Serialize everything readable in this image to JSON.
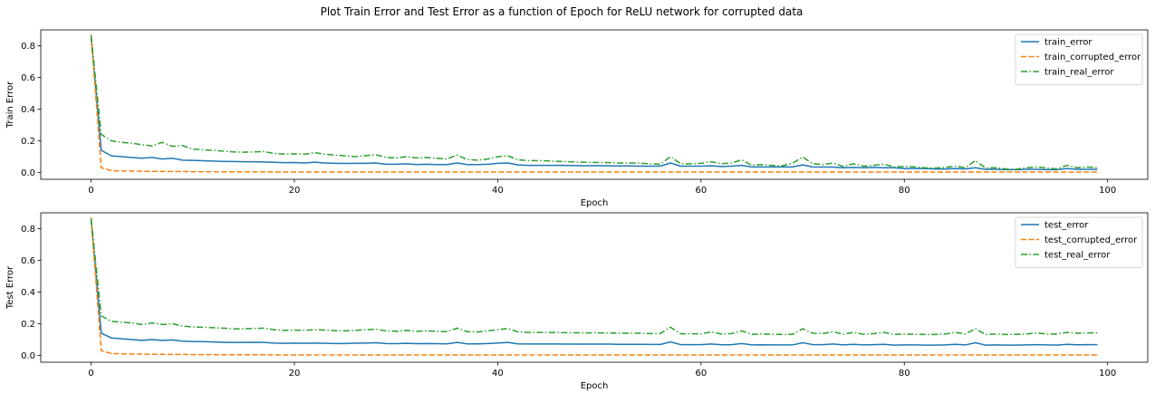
{
  "title": "Plot Train Error and Test Error as a function of Epoch for ReLU network for corrupted data",
  "colors": {
    "blue": "#1f77b4",
    "orange": "#ff7f0e",
    "green": "#2ca02c"
  },
  "chart_data": [
    {
      "type": "line",
      "xlabel": "Epoch",
      "ylabel": "Train Error",
      "xlim": [
        -4.95,
        103.95
      ],
      "ylim": [
        -0.043,
        0.9
      ],
      "xticks": [
        0,
        20,
        40,
        60,
        80,
        100
      ],
      "yticks": [
        0.0,
        0.2,
        0.4,
        0.6,
        0.8
      ],
      "legend_position": "top-right",
      "series": [
        {
          "name": "train_error",
          "color": "blue",
          "dash": "solid",
          "values": [
            0.855,
            0.14,
            0.105,
            0.1,
            0.095,
            0.09,
            0.095,
            0.085,
            0.09,
            0.078,
            0.076,
            0.074,
            0.072,
            0.07,
            0.069,
            0.068,
            0.068,
            0.066,
            0.064,
            0.062,
            0.063,
            0.06,
            0.065,
            0.06,
            0.058,
            0.057,
            0.058,
            0.058,
            0.06,
            0.052,
            0.052,
            0.055,
            0.05,
            0.052,
            0.05,
            0.05,
            0.06,
            0.05,
            0.05,
            0.052,
            0.058,
            0.06,
            0.048,
            0.045,
            0.045,
            0.045,
            0.045,
            0.044,
            0.043,
            0.043,
            0.043,
            0.042,
            0.041,
            0.041,
            0.04,
            0.04,
            0.04,
            0.06,
            0.04,
            0.04,
            0.04,
            0.042,
            0.038,
            0.04,
            0.045,
            0.035,
            0.035,
            0.035,
            0.035,
            0.035,
            0.048,
            0.035,
            0.034,
            0.034,
            0.03,
            0.032,
            0.03,
            0.032,
            0.03,
            0.03,
            0.025,
            0.025,
            0.025,
            0.022,
            0.022,
            0.025,
            0.022,
            0.03,
            0.02,
            0.02,
            0.018,
            0.018,
            0.02,
            0.02,
            0.018,
            0.018,
            0.025,
            0.02,
            0.02,
            0.02
          ]
        },
        {
          "name": "train_corrupted_error",
          "color": "orange",
          "dash": "dashed",
          "values": [
            0.87,
            0.03,
            0.012,
            0.01,
            0.009,
            0.008,
            0.007,
            0.007,
            0.006,
            0.006,
            0.005,
            0.005,
            0.005,
            0.004,
            0.004,
            0.004,
            0.004,
            0.004,
            0.003,
            0.003,
            0.003,
            0.003,
            0.003,
            0.003,
            0.003,
            0.003,
            0.003,
            0.003,
            0.003,
            0.003,
            0.003,
            0.003,
            0.003,
            0.003,
            0.003,
            0.003,
            0.003,
            0.003,
            0.003,
            0.003,
            0.003,
            0.003,
            0.003,
            0.003,
            0.003,
            0.003,
            0.003,
            0.003,
            0.003,
            0.003,
            0.003,
            0.003,
            0.003,
            0.003,
            0.003,
            0.003,
            0.003,
            0.003,
            0.003,
            0.003,
            0.003,
            0.003,
            0.003,
            0.003,
            0.003,
            0.003,
            0.003,
            0.003,
            0.003,
            0.003,
            0.003,
            0.003,
            0.003,
            0.003,
            0.003,
            0.003,
            0.003,
            0.003,
            0.003,
            0.003,
            0.003,
            0.003,
            0.003,
            0.003,
            0.003,
            0.003,
            0.003,
            0.003,
            0.003,
            0.003,
            0.003,
            0.003,
            0.003,
            0.003,
            0.003,
            0.003,
            0.003,
            0.003,
            0.003,
            0.003
          ]
        },
        {
          "name": "train_real_error",
          "color": "green",
          "dash": "dashdot",
          "values": [
            0.865,
            0.24,
            0.2,
            0.19,
            0.185,
            0.175,
            0.168,
            0.19,
            0.165,
            0.17,
            0.148,
            0.143,
            0.14,
            0.135,
            0.13,
            0.128,
            0.13,
            0.132,
            0.12,
            0.116,
            0.118,
            0.115,
            0.125,
            0.115,
            0.11,
            0.105,
            0.1,
            0.106,
            0.112,
            0.095,
            0.092,
            0.1,
            0.092,
            0.095,
            0.09,
            0.085,
            0.11,
            0.082,
            0.078,
            0.085,
            0.1,
            0.105,
            0.08,
            0.075,
            0.075,
            0.073,
            0.07,
            0.068,
            0.066,
            0.064,
            0.063,
            0.062,
            0.06,
            0.06,
            0.058,
            0.055,
            0.052,
            0.1,
            0.055,
            0.055,
            0.058,
            0.068,
            0.055,
            0.06,
            0.08,
            0.045,
            0.05,
            0.045,
            0.042,
            0.058,
            0.098,
            0.055,
            0.05,
            0.06,
            0.038,
            0.055,
            0.04,
            0.045,
            0.052,
            0.035,
            0.038,
            0.035,
            0.03,
            0.028,
            0.032,
            0.04,
            0.03,
            0.075,
            0.028,
            0.03,
            0.022,
            0.02,
            0.03,
            0.035,
            0.028,
            0.022,
            0.045,
            0.03,
            0.035,
            0.03
          ]
        }
      ]
    },
    {
      "type": "line",
      "xlabel": "Epoch",
      "ylabel": "Test Error",
      "xlim": [
        -4.95,
        103.95
      ],
      "ylim": [
        -0.043,
        0.9
      ],
      "xticks": [
        0,
        20,
        40,
        60,
        80,
        100
      ],
      "yticks": [
        0.0,
        0.2,
        0.4,
        0.6,
        0.8
      ],
      "legend_position": "top-right",
      "series": [
        {
          "name": "test_error",
          "color": "blue",
          "dash": "solid",
          "values": [
            0.855,
            0.14,
            0.11,
            0.105,
            0.1,
            0.095,
            0.1,
            0.095,
            0.098,
            0.09,
            0.088,
            0.087,
            0.085,
            0.083,
            0.082,
            0.082,
            0.083,
            0.082,
            0.078,
            0.076,
            0.078,
            0.076,
            0.078,
            0.076,
            0.075,
            0.075,
            0.077,
            0.078,
            0.08,
            0.075,
            0.074,
            0.076,
            0.074,
            0.075,
            0.074,
            0.073,
            0.082,
            0.073,
            0.073,
            0.075,
            0.078,
            0.082,
            0.073,
            0.072,
            0.072,
            0.072,
            0.072,
            0.071,
            0.071,
            0.071,
            0.071,
            0.071,
            0.07,
            0.07,
            0.07,
            0.069,
            0.069,
            0.085,
            0.068,
            0.068,
            0.068,
            0.072,
            0.067,
            0.068,
            0.075,
            0.066,
            0.067,
            0.066,
            0.066,
            0.066,
            0.08,
            0.068,
            0.068,
            0.072,
            0.066,
            0.07,
            0.066,
            0.068,
            0.07,
            0.065,
            0.066,
            0.066,
            0.065,
            0.065,
            0.066,
            0.07,
            0.066,
            0.08,
            0.065,
            0.066,
            0.065,
            0.065,
            0.066,
            0.068,
            0.066,
            0.065,
            0.07,
            0.067,
            0.068,
            0.068
          ]
        },
        {
          "name": "test_corrupted_error",
          "color": "orange",
          "dash": "dashed",
          "values": [
            0.87,
            0.03,
            0.012,
            0.01,
            0.009,
            0.008,
            0.007,
            0.007,
            0.006,
            0.006,
            0.005,
            0.005,
            0.005,
            0.004,
            0.004,
            0.004,
            0.004,
            0.004,
            0.003,
            0.003,
            0.003,
            0.003,
            0.003,
            0.003,
            0.003,
            0.003,
            0.003,
            0.003,
            0.003,
            0.003,
            0.003,
            0.003,
            0.003,
            0.003,
            0.003,
            0.003,
            0.003,
            0.003,
            0.003,
            0.003,
            0.003,
            0.003,
            0.003,
            0.003,
            0.003,
            0.003,
            0.003,
            0.003,
            0.003,
            0.003,
            0.003,
            0.003,
            0.003,
            0.003,
            0.003,
            0.003,
            0.003,
            0.003,
            0.003,
            0.003,
            0.003,
            0.003,
            0.003,
            0.003,
            0.003,
            0.003,
            0.003,
            0.003,
            0.003,
            0.003,
            0.003,
            0.003,
            0.003,
            0.003,
            0.003,
            0.003,
            0.003,
            0.003,
            0.003,
            0.003,
            0.003,
            0.003,
            0.003,
            0.003,
            0.003,
            0.003,
            0.003,
            0.003,
            0.003,
            0.003,
            0.003,
            0.003,
            0.003,
            0.003,
            0.003,
            0.003,
            0.003,
            0.003,
            0.003,
            0.003
          ]
        },
        {
          "name": "test_real_error",
          "color": "green",
          "dash": "dashdot",
          "values": [
            0.865,
            0.25,
            0.215,
            0.21,
            0.205,
            0.195,
            0.205,
            0.195,
            0.2,
            0.185,
            0.18,
            0.178,
            0.175,
            0.172,
            0.168,
            0.168,
            0.17,
            0.172,
            0.162,
            0.158,
            0.16,
            0.158,
            0.162,
            0.16,
            0.156,
            0.155,
            0.158,
            0.162,
            0.165,
            0.155,
            0.152,
            0.158,
            0.152,
            0.155,
            0.152,
            0.15,
            0.172,
            0.15,
            0.148,
            0.155,
            0.162,
            0.17,
            0.148,
            0.145,
            0.145,
            0.145,
            0.144,
            0.143,
            0.143,
            0.142,
            0.142,
            0.141,
            0.14,
            0.14,
            0.14,
            0.138,
            0.138,
            0.178,
            0.136,
            0.136,
            0.136,
            0.148,
            0.135,
            0.138,
            0.155,
            0.133,
            0.135,
            0.133,
            0.132,
            0.133,
            0.168,
            0.14,
            0.138,
            0.15,
            0.133,
            0.145,
            0.133,
            0.138,
            0.145,
            0.132,
            0.135,
            0.133,
            0.132,
            0.132,
            0.135,
            0.145,
            0.135,
            0.168,
            0.132,
            0.135,
            0.132,
            0.133,
            0.135,
            0.142,
            0.135,
            0.135,
            0.145,
            0.14,
            0.142,
            0.142
          ]
        }
      ]
    }
  ]
}
